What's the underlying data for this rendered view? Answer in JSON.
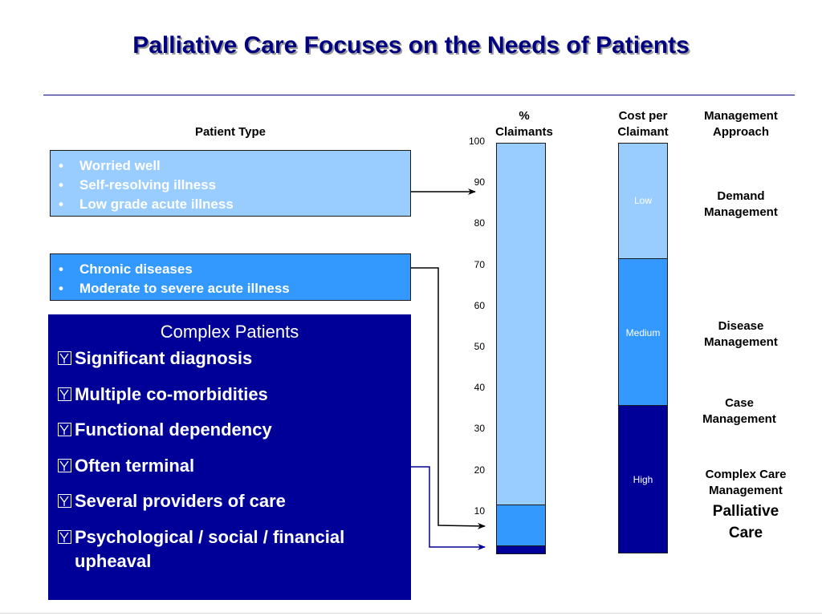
{
  "title": "Palliative Care Focuses on the Needs of Patients",
  "headers": {
    "patient_type": "Patient Type",
    "pct_claimants_line1": "%",
    "pct_claimants_line2": "Claimants",
    "cost_line1": "Cost per",
    "cost_line2": "Claimant",
    "mgmt_line1": "Management",
    "mgmt_line2": "Approach"
  },
  "patient_groups": [
    {
      "items": [
        "Worried well",
        "Self-resolving illness",
        "Low grade acute illness"
      ],
      "color": "#99ccff"
    },
    {
      "items": [
        "Chronic diseases",
        "Moderate to severe acute illness"
      ],
      "color": "#3399ff"
    }
  ],
  "complex": {
    "heading": "Complex Patients",
    "items": [
      "Significant diagnosis",
      "Multiple co-morbidities",
      "Functional dependency",
      "Often terminal",
      "Several providers of care",
      "Psychological / social / financial upheaval"
    ],
    "color": "#000099"
  },
  "chart_data": {
    "type": "bar",
    "axis_ticks": [
      100,
      90,
      80,
      70,
      60,
      50,
      40,
      30,
      20,
      10
    ],
    "ylim": [
      0,
      100
    ],
    "claimants_bar": {
      "segments": [
        {
          "value": 2,
          "color": "#000099"
        },
        {
          "value": 10,
          "color": "#3399ff"
        },
        {
          "value": 88,
          "color": "#99ccff"
        }
      ]
    },
    "cost_bar": {
      "segments": [
        {
          "label": "High",
          "value": 36,
          "color": "#000099"
        },
        {
          "label": "Medium",
          "value": 36,
          "color": "#3399ff"
        },
        {
          "label": "Low",
          "value": 28,
          "color": "#99ccff"
        }
      ]
    }
  },
  "management": {
    "demand": [
      "Demand",
      "Management"
    ],
    "disease": [
      "Disease",
      "Management"
    ],
    "case": [
      "Case",
      "Management"
    ],
    "complex_care": [
      "Complex Care",
      "Management"
    ],
    "palliative": [
      "Palliative",
      "Care"
    ]
  },
  "colors": {
    "title": "#000080",
    "arrow_dark": "#000099",
    "arrow_black": "#000000"
  }
}
